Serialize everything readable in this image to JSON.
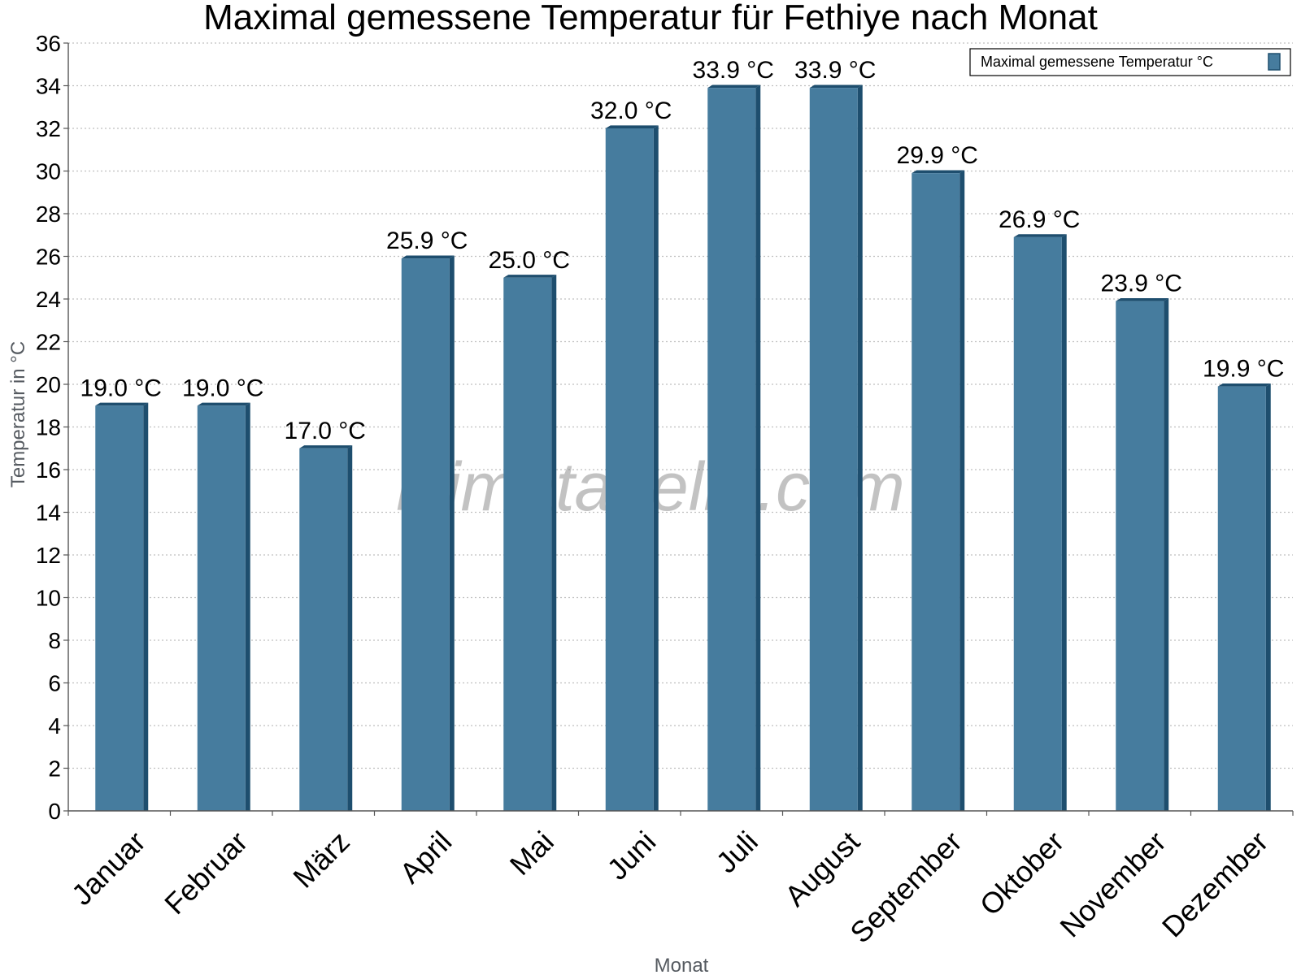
{
  "chart_data": {
    "type": "bar",
    "title": "Maximal gemessene Temperatur für Fethiye nach Monat",
    "xlabel": "Monat",
    "ylabel": "Temperatur in °C",
    "categories": [
      "Januar",
      "Februar",
      "März",
      "April",
      "Mai",
      "Juni",
      "Juli",
      "August",
      "September",
      "Oktober",
      "November",
      "Dezember"
    ],
    "series": [
      {
        "name": "Maximal gemessene Temperatur °C",
        "values": [
          19.0,
          19.0,
          17.0,
          25.9,
          25.0,
          32.0,
          33.9,
          33.9,
          29.9,
          26.9,
          23.9,
          19.9
        ],
        "labels": [
          "19.0 °C",
          "19.0 °C",
          "17.0 °C",
          "25.9 °C",
          "25.0 °C",
          "32.0 °C",
          "33.9 °C",
          "33.9 °C",
          "29.9 °C",
          "26.9 °C",
          "23.9 °C",
          "19.9 °C"
        ]
      }
    ],
    "ylim": [
      0,
      36
    ],
    "yticks": [
      0,
      2,
      4,
      6,
      8,
      10,
      12,
      14,
      16,
      18,
      20,
      22,
      24,
      26,
      28,
      30,
      32,
      34,
      36
    ],
    "grid": true,
    "legend_position": "top-right",
    "colors": {
      "bar": "#467c9e",
      "bar_side": "#1e4e6e",
      "grid": "#bfbfbf"
    },
    "watermark": "klimatabelle.com"
  }
}
